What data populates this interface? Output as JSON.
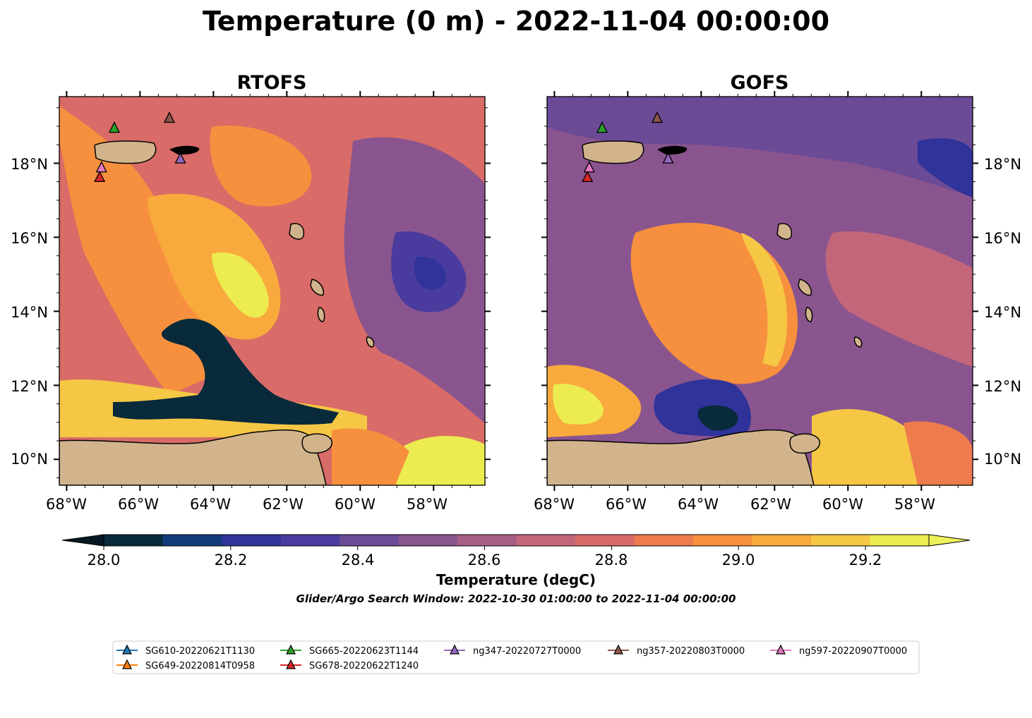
{
  "chart_data": {
    "type": "heatmap",
    "title": "Temperature (0 m) - 2022-11-04 00:00:00",
    "panels": [
      {
        "title": "RTOFS"
      },
      {
        "title": "GOFS"
      }
    ],
    "x_ticks": [
      "68°W",
      "66°W",
      "64°W",
      "62°W",
      "60°W",
      "58°W"
    ],
    "y_ticks": [
      "18°N",
      "16°N",
      "14°N",
      "12°N",
      "10°N"
    ],
    "xlim": [
      -68.2,
      -56.6
    ],
    "ylim": [
      9.3,
      19.8
    ],
    "colorbar": {
      "label": "Temperature (degC)",
      "ticks": [
        "28.0",
        "28.2",
        "28.4",
        "28.6",
        "28.8",
        "29.0",
        "29.2"
      ],
      "range": [
        28.0,
        29.3
      ],
      "step": 0.1,
      "colors": [
        "#082a3a",
        "#123a78",
        "#2f339a",
        "#4a3c9e",
        "#6b4a96",
        "#8a558f",
        "#a75e86",
        "#c36679",
        "#d96b68",
        "#ed7b4e",
        "#f7903e",
        "#f9aa3d",
        "#f5c744",
        "#ecec50"
      ],
      "extend_low_color": "#041722",
      "extend_high_color": "#eef05a"
    },
    "note": "Glider/Argo Search Window: 2022-10-30 01:00:00 to 2022-11-04 00:00:00",
    "gliders": [
      {
        "name": "SG610-20220621T1130",
        "color": "#1f77b4"
      },
      {
        "name": "SG649-20220814T0958",
        "color": "#ff7f0e"
      },
      {
        "name": "SG665-20220623T1144",
        "color": "#2ca02c",
        "lon": -66.7,
        "lat": 18.95
      },
      {
        "name": "SG678-20220622T1240",
        "color": "#d62728",
        "lon": -67.1,
        "lat": 17.62
      },
      {
        "name": "ng347-20220727T0000",
        "color": "#9467bd",
        "lon": -64.9,
        "lat": 18.12
      },
      {
        "name": "ng357-20220803T0000",
        "color": "#8c564b",
        "lon": -65.2,
        "lat": 19.22
      },
      {
        "name": "ng597-20220907T0000",
        "color": "#e377c2",
        "lon": -67.05,
        "lat": 17.88
      }
    ],
    "colors": {
      "land": "#d2b48c",
      "rtofs_background": "#d96b68",
      "gofs_background": "#8a558f"
    }
  }
}
